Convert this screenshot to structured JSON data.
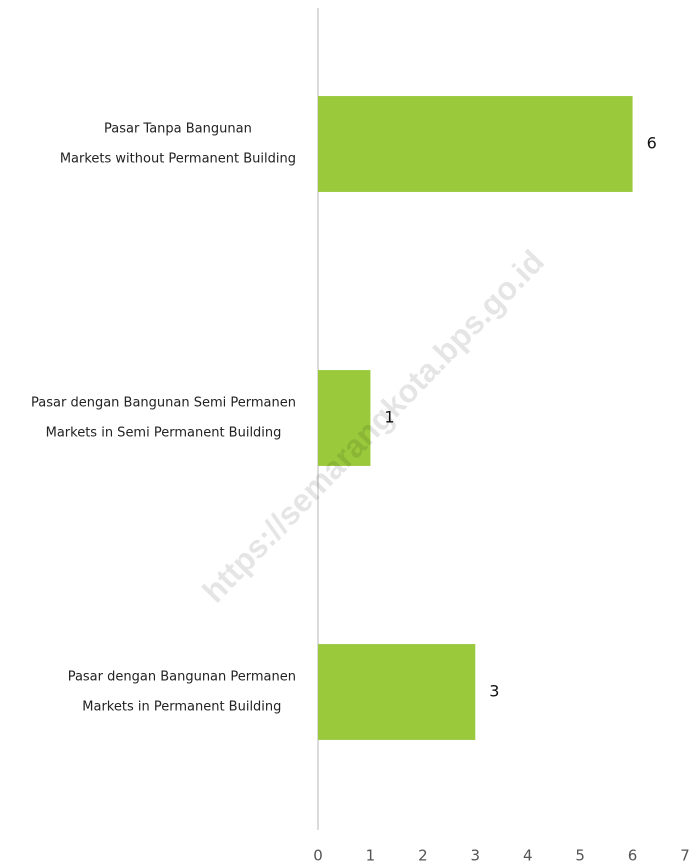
{
  "chart_data": {
    "type": "barh",
    "categories": [
      [
        "Pasar Tanpa Bangunan",
        "Markets without Permanent Building"
      ],
      [
        "Pasar dengan Bangunan Semi Permanen",
        "Markets in Semi Permanent Building"
      ],
      [
        "Pasar dengan Bangunan Permanen",
        "Markets in Permanent Building"
      ]
    ],
    "values": [
      6,
      1,
      3
    ],
    "color": "#9aca3c",
    "xlim": [
      0,
      7
    ],
    "xticks": [
      0,
      1,
      2,
      3,
      4,
      5,
      6,
      7
    ],
    "grid": false,
    "watermark": "https://semarangkota.bps.go.id"
  }
}
